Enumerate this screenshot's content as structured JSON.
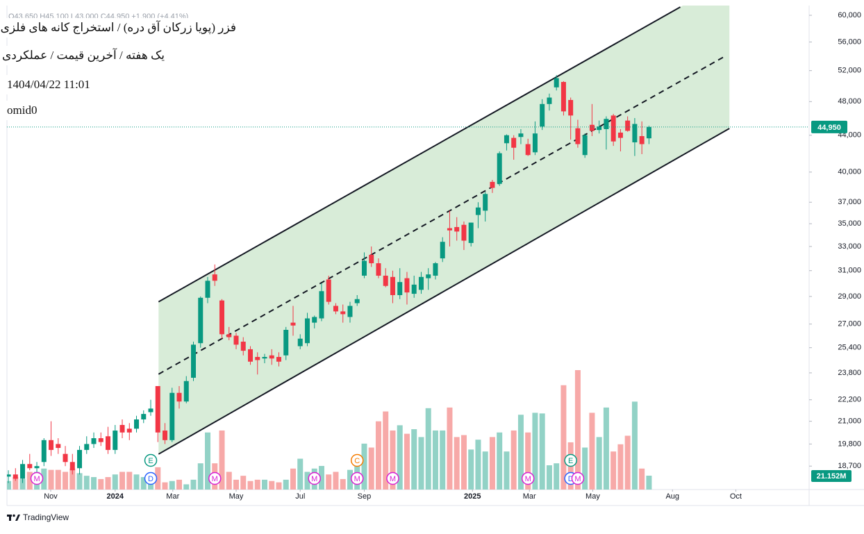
{
  "chart_data": {
    "type": "candlestick",
    "ohlc_header": "O43,650 H45,100 L43,000 C44,950 +1,900 (+4.41%)",
    "open": [
      18200,
      18300,
      18100,
      18800,
      18600,
      18900,
      20000,
      19800,
      19300,
      18900,
      18600,
      19500,
      19800,
      20100,
      20200,
      19500,
      20800,
      20600,
      20600,
      21100,
      21500,
      23000,
      20500,
      20000,
      22600,
      22100,
      23500,
      25700,
      28900,
      30700,
      28700,
      26300,
      26200,
      25800,
      25300,
      24800,
      24700,
      24900,
      24800,
      24900,
      27100,
      25500,
      25700,
      27100,
      27400,
      30300,
      28300,
      27900,
      27500,
      28500,
      30600,
      32300,
      31600,
      30600,
      30500,
      29100,
      30400,
      29200,
      29500,
      30400,
      30600,
      32000,
      34600,
      34700,
      34900,
      33300,
      35800,
      36200,
      39000,
      38800,
      43100,
      43700,
      43800,
      43000,
      42100,
      45000,
      47700,
      49800,
      50500,
      48200,
      44800,
      41800,
      45200,
      44600,
      44700,
      46300,
      44300,
      45700,
      43200,
      43900,
      43650
    ],
    "high": [
      18500,
      18600,
      19000,
      19300,
      18900,
      20100,
      21000,
      20100,
      19700,
      19300,
      19700,
      20200,
      20400,
      20400,
      20700,
      20800,
      21100,
      20900,
      21300,
      21600,
      22200,
      23000,
      20900,
      22900,
      23000,
      23600,
      25800,
      29000,
      30500,
      31500,
      28800,
      26800,
      26400,
      26100,
      25500,
      25100,
      25000,
      25300,
      25100,
      26800,
      28300,
      26300,
      27800,
      27600,
      30000,
      30600,
      28500,
      28400,
      28600,
      29100,
      32500,
      33000,
      32000,
      31200,
      31000,
      31200,
      30900,
      30600,
      30900,
      31200,
      31700,
      33800,
      36200,
      35600,
      35200,
      35100,
      37000,
      38000,
      39200,
      42200,
      44100,
      44000,
      44700,
      43600,
      45600,
      48300,
      49000,
      51400,
      50600,
      48500,
      45800,
      44200,
      47700,
      45700,
      46200,
      46500,
      44700,
      46200,
      46000,
      45600,
      45100
    ],
    "low": [
      17900,
      18000,
      17900,
      18500,
      18300,
      18700,
      19200,
      19300,
      18700,
      18300,
      18300,
      19300,
      19600,
      19700,
      19300,
      19300,
      20100,
      20000,
      20400,
      20900,
      21300,
      19900,
      19800,
      19900,
      21700,
      22000,
      23300,
      25400,
      28500,
      29800,
      26000,
      25900,
      25300,
      24900,
      24300,
      23700,
      24400,
      24300,
      24200,
      24600,
      26200,
      25300,
      25500,
      26700,
      27200,
      28400,
      27700,
      27100,
      27100,
      28300,
      30400,
      31300,
      30400,
      29700,
      28500,
      28800,
      28400,
      28900,
      29200,
      29500,
      30300,
      31700,
      33000,
      33500,
      32700,
      33000,
      34600,
      35200,
      37900,
      38600,
      42300,
      41300,
      43000,
      41700,
      41800,
      44600,
      46900,
      49400,
      46300,
      43500,
      42600,
      41500,
      43900,
      44200,
      42400,
      42800,
      42200,
      44400,
      41700,
      41900,
      43000
    ],
    "close": [
      18300,
      18100,
      18800,
      18600,
      18700,
      20000,
      19500,
      19600,
      18900,
      18500,
      19500,
      19800,
      20100,
      19900,
      19500,
      20500,
      20400,
      20400,
      21100,
      21400,
      21700,
      20400,
      20000,
      22600,
      22100,
      23300,
      25600,
      28900,
      30200,
      30200,
      26300,
      26100,
      25600,
      25200,
      24500,
      24600,
      24800,
      24700,
      24500,
      26600,
      26900,
      26000,
      27400,
      27500,
      29400,
      28600,
      27900,
      27700,
      28300,
      28800,
      31800,
      31600,
      30600,
      29800,
      29100,
      30100,
      29300,
      29900,
      30500,
      30700,
      31600,
      33400,
      34400,
      34300,
      33500,
      35100,
      36500,
      37800,
      38400,
      42000,
      44000,
      42600,
      44200,
      41800,
      44200,
      47700,
      48500,
      51000,
      46800,
      46300,
      43000,
      44000,
      44500,
      45000,
      45900,
      43300,
      43700,
      44500,
      45300,
      43000,
      44950
    ],
    "volume": [
      13,
      19,
      16,
      27,
      27,
      32,
      30,
      30,
      27,
      32,
      25,
      21,
      19,
      16,
      19,
      23,
      27,
      27,
      23,
      19,
      23,
      34,
      11,
      13,
      15,
      8,
      15,
      40,
      87,
      40,
      90,
      27,
      15,
      21,
      13,
      15,
      15,
      13,
      11,
      15,
      32,
      47,
      27,
      32,
      36,
      23,
      27,
      16,
      30,
      48,
      70,
      64,
      104,
      119,
      90,
      98,
      85,
      92,
      80,
      124,
      90,
      90,
      125,
      80,
      83,
      61,
      76,
      58,
      80,
      87,
      58,
      90,
      114,
      87,
      117,
      116,
      37,
      40,
      159,
      72,
      182,
      64,
      117,
      80,
      125,
      58,
      69,
      82,
      134,
      32,
      21.152
    ],
    "volume_last_label": "21.152M",
    "last_price_label": "44,950",
    "up_color": "#089981",
    "down_color": "#f23645",
    "volume_up_color": "#92d2c6",
    "volume_down_color": "#f7a9a8",
    "log_scale": true,
    "grid": false,
    "ylim": [
      17600,
      61530
    ],
    "yticks": [
      {
        "value": 60000,
        "label": "60,000"
      },
      {
        "value": 56000,
        "label": "56,000"
      },
      {
        "value": 52000,
        "label": "52,000"
      },
      {
        "value": 48000,
        "label": "48,000"
      },
      {
        "value": 44000,
        "label": "44,000"
      },
      {
        "value": 40000,
        "label": "40,000"
      },
      {
        "value": 37000,
        "label": "37,000"
      },
      {
        "value": 35000,
        "label": "35,000"
      },
      {
        "value": 33000,
        "label": "33,000"
      },
      {
        "value": 31000,
        "label": "31,000"
      },
      {
        "value": 29000,
        "label": "29,000"
      },
      {
        "value": 27000,
        "label": "27,000"
      },
      {
        "value": 25400,
        "label": "25,400"
      },
      {
        "value": 23800,
        "label": "23,800"
      },
      {
        "value": 22200,
        "label": "22,200"
      },
      {
        "value": 21000,
        "label": "21,000"
      },
      {
        "value": 19800,
        "label": "19,800"
      },
      {
        "value": 18700,
        "label": "18,700"
      }
    ],
    "xlim": [
      -0.2,
      112.5
    ],
    "xticks": [
      {
        "value": 5.95,
        "label": "Nov"
      },
      {
        "value": 15,
        "label": "2024"
      },
      {
        "value": 23.1,
        "label": "Mar"
      },
      {
        "value": 32,
        "label": "May"
      },
      {
        "value": 41,
        "label": "Jul"
      },
      {
        "value": 50,
        "label": "Sep"
      },
      {
        "value": 65.2,
        "label": "2025"
      },
      {
        "value": 73.2,
        "label": "Mar"
      },
      {
        "value": 82.1,
        "label": "May"
      },
      {
        "value": 93.3,
        "label": "Aug"
      },
      {
        "value": 102.2,
        "label": "Oct"
      }
    ],
    "channel": {
      "fill": "#d8ecd8",
      "upper": {
        "x": [
          21.1,
          94.4
        ],
        "y": [
          28600,
          61300
        ],
        "style": "solid"
      },
      "middle": {
        "x": [
          21.1,
          100.6
        ],
        "y": [
          23720,
          53930
        ],
        "style": "dashed"
      },
      "lower": {
        "x": [
          21.1,
          101.3
        ],
        "y": [
          19290,
          44780
        ],
        "style": "solid"
      }
    },
    "events": [
      {
        "label": "M",
        "x": 4,
        "color": "#d81fd1"
      },
      {
        "label": "D",
        "x": 20,
        "color": "#2962ff"
      },
      {
        "label": "E",
        "x": 20,
        "color": "#089981"
      },
      {
        "label": "M",
        "x": 29,
        "color": "#d81fd1"
      },
      {
        "label": "M",
        "x": 43,
        "color": "#d81fd1"
      },
      {
        "label": "M",
        "x": 49,
        "color": "#d81fd1"
      },
      {
        "label": "C",
        "x": 49,
        "color": "#f57c00"
      },
      {
        "label": "M",
        "x": 54,
        "color": "#d81fd1"
      },
      {
        "label": "M",
        "x": 73,
        "color": "#d81fd1"
      },
      {
        "label": "D",
        "x": 79,
        "color": "#2962ff"
      },
      {
        "label": "E",
        "x": 79,
        "color": "#089981"
      },
      {
        "label": "M",
        "x": 80,
        "color": "#d81fd1"
      }
    ]
  },
  "header": {
    "symbol": "فزر (پویا زرکان آق دره) / استخراج کانه های فلزی",
    "settings": "یک هفته / آخرین قیمت / عملکردی",
    "datetime": "1404/04/22 11:01",
    "author": "omid0"
  },
  "brand": "TradingView"
}
